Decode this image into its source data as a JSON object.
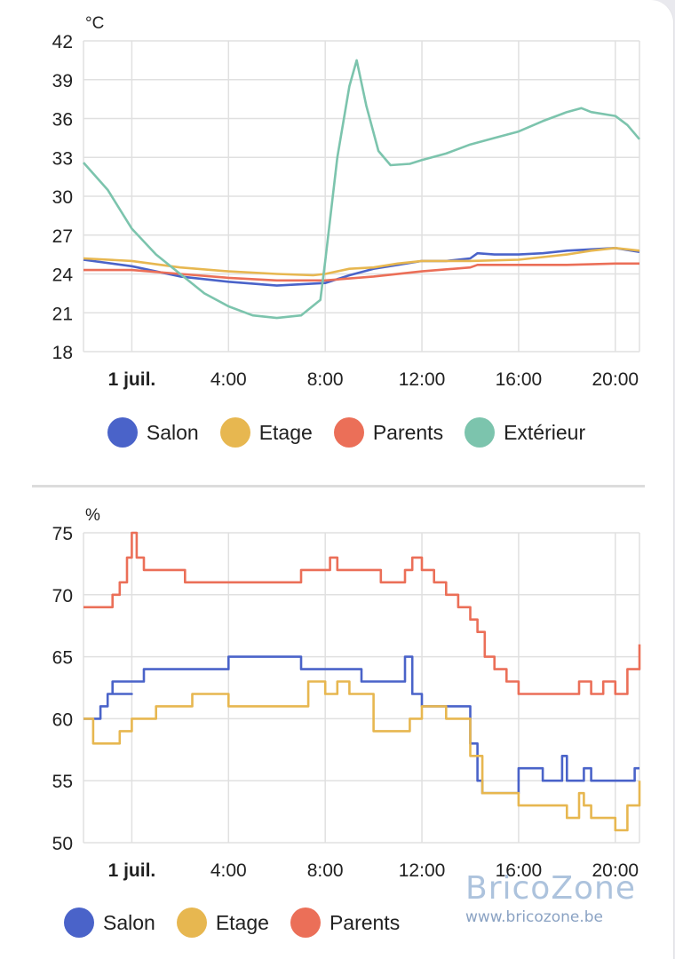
{
  "colors": {
    "salon": "#4a63c9",
    "etage": "#e7b750",
    "parents": "#eb6f58",
    "exterieur": "#7cc4ad",
    "grid": "#e0e0e0"
  },
  "chart_data": [
    {
      "type": "line",
      "title": "",
      "unit": "°C",
      "ylim": [
        18,
        42
      ],
      "yticks": [
        18,
        21,
        24,
        27,
        30,
        33,
        36,
        39,
        42
      ],
      "x_range_hours": [
        -2,
        21
      ],
      "x_ticks": [
        {
          "hour": 0,
          "label": "1 juil.",
          "bold": true
        },
        {
          "hour": 4,
          "label": "4:00",
          "bold": false
        },
        {
          "hour": 8,
          "label": "8:00",
          "bold": false
        },
        {
          "hour": 12,
          "label": "12:00",
          "bold": false
        },
        {
          "hour": 16,
          "label": "16:00",
          "bold": false
        },
        {
          "hour": 20,
          "label": "20:00",
          "bold": false
        }
      ],
      "grid": true,
      "legend_position": "bottom",
      "series": [
        {
          "name": "Salon",
          "color_key": "salon",
          "points": [
            [
              -2,
              25.1
            ],
            [
              0,
              24.6
            ],
            [
              2,
              23.8
            ],
            [
              4,
              23.4
            ],
            [
              6,
              23.1
            ],
            [
              8,
              23.3
            ],
            [
              9,
              23.9
            ],
            [
              10,
              24.4
            ],
            [
              11,
              24.7
            ],
            [
              12,
              25.0
            ],
            [
              13,
              25.0
            ],
            [
              14,
              25.2
            ],
            [
              14.3,
              25.6
            ],
            [
              15,
              25.5
            ],
            [
              16,
              25.5
            ],
            [
              17,
              25.6
            ],
            [
              18,
              25.8
            ],
            [
              19,
              25.9
            ],
            [
              20,
              26.0
            ],
            [
              21,
              25.7
            ]
          ]
        },
        {
          "name": "Etage",
          "color_key": "etage",
          "points": [
            [
              -2,
              25.2
            ],
            [
              0,
              25.0
            ],
            [
              2,
              24.5
            ],
            [
              4,
              24.2
            ],
            [
              6,
              24.0
            ],
            [
              7.5,
              23.9
            ],
            [
              8,
              24.0
            ],
            [
              9,
              24.4
            ],
            [
              10,
              24.5
            ],
            [
              11,
              24.8
            ],
            [
              12,
              25.0
            ],
            [
              14,
              25.0
            ],
            [
              16,
              25.1
            ],
            [
              18,
              25.5
            ],
            [
              19,
              25.8
            ],
            [
              20,
              26.0
            ],
            [
              21,
              25.8
            ]
          ]
        },
        {
          "name": "Parents",
          "color_key": "parents",
          "points": [
            [
              -2,
              24.3
            ],
            [
              0,
              24.3
            ],
            [
              2,
              24.0
            ],
            [
              4,
              23.7
            ],
            [
              6,
              23.5
            ],
            [
              8,
              23.5
            ],
            [
              10,
              23.8
            ],
            [
              12,
              24.2
            ],
            [
              14,
              24.5
            ],
            [
              14.3,
              24.7
            ],
            [
              16,
              24.7
            ],
            [
              18,
              24.7
            ],
            [
              20,
              24.8
            ],
            [
              21,
              24.8
            ]
          ]
        },
        {
          "name": "Extérieur",
          "color_key": "exterieur",
          "points": [
            [
              -2,
              32.6
            ],
            [
              -1,
              30.5
            ],
            [
              0,
              27.5
            ],
            [
              1,
              25.5
            ],
            [
              2,
              24.0
            ],
            [
              3,
              22.5
            ],
            [
              4,
              21.5
            ],
            [
              5,
              20.8
            ],
            [
              6,
              20.6
            ],
            [
              7,
              20.8
            ],
            [
              7.8,
              22.0
            ],
            [
              8,
              25.0
            ],
            [
              8.5,
              33.0
            ],
            [
              9,
              38.5
            ],
            [
              9.3,
              40.5
            ],
            [
              9.7,
              37.0
            ],
            [
              10.2,
              33.5
            ],
            [
              10.7,
              32.4
            ],
            [
              11.5,
              32.5
            ],
            [
              12,
              32.8
            ],
            [
              13,
              33.3
            ],
            [
              14,
              34.0
            ],
            [
              15,
              34.5
            ],
            [
              16,
              35.0
            ],
            [
              17,
              35.8
            ],
            [
              18,
              36.5
            ],
            [
              18.6,
              36.8
            ],
            [
              19,
              36.5
            ],
            [
              20,
              36.2
            ],
            [
              20.5,
              35.5
            ],
            [
              21,
              34.4
            ]
          ]
        }
      ]
    },
    {
      "type": "line",
      "title": "",
      "unit": "%",
      "ylim": [
        50,
        75
      ],
      "yticks": [
        50,
        55,
        60,
        65,
        70,
        75
      ],
      "x_range_hours": [
        -2,
        21
      ],
      "x_ticks": [
        {
          "hour": 0,
          "label": "1 juil.",
          "bold": true
        },
        {
          "hour": 4,
          "label": "4:00",
          "bold": false
        },
        {
          "hour": 8,
          "label": "8:00",
          "bold": false
        },
        {
          "hour": 12,
          "label": "12:00",
          "bold": false
        },
        {
          "hour": 16,
          "label": "16:00",
          "bold": false
        },
        {
          "hour": 20,
          "label": "20:00",
          "bold": false
        }
      ],
      "grid": true,
      "legend_position": "bottom",
      "series": [
        {
          "name": "Salon",
          "color_key": "salon",
          "points": [
            [
              -2,
              60
            ],
            [
              -1.3,
              61
            ],
            [
              -1,
              62
            ],
            [
              0,
              62
            ],
            [
              -0.8,
              63
            ],
            [
              0,
              63
            ],
            [
              0.5,
              64
            ],
            [
              4,
              64
            ],
            [
              4,
              65
            ],
            [
              6,
              65
            ],
            [
              6.5,
              65
            ],
            [
              7,
              64
            ],
            [
              9,
              64
            ],
            [
              9.5,
              63
            ],
            [
              11,
              63
            ],
            [
              11.3,
              65
            ],
            [
              11.6,
              62
            ],
            [
              12,
              61
            ],
            [
              13.5,
              61
            ],
            [
              14,
              58
            ],
            [
              14.3,
              55
            ],
            [
              14.5,
              54
            ],
            [
              15,
              54
            ],
            [
              16,
              55
            ],
            [
              16,
              56
            ],
            [
              17,
              55
            ],
            [
              17.5,
              55
            ],
            [
              17.8,
              57
            ],
            [
              18,
              55
            ],
            [
              18.5,
              55
            ],
            [
              18.7,
              56
            ],
            [
              19,
              55
            ],
            [
              20.5,
              55
            ],
            [
              20.8,
              56
            ],
            [
              21,
              56
            ]
          ]
        },
        {
          "name": "Etage",
          "color_key": "etage",
          "points": [
            [
              -2,
              60
            ],
            [
              -1.6,
              58
            ],
            [
              -1,
              58
            ],
            [
              -0.5,
              59
            ],
            [
              0,
              60
            ],
            [
              0.5,
              60
            ],
            [
              1,
              61
            ],
            [
              2,
              61
            ],
            [
              2.5,
              62
            ],
            [
              3.5,
              62
            ],
            [
              4,
              61
            ],
            [
              6,
              61
            ],
            [
              7,
              61
            ],
            [
              7.3,
              63
            ],
            [
              8,
              62
            ],
            [
              8.5,
              63
            ],
            [
              9,
              62
            ],
            [
              10,
              59
            ],
            [
              11,
              59
            ],
            [
              11.5,
              60
            ],
            [
              12,
              61
            ],
            [
              13,
              60
            ],
            [
              14,
              57
            ],
            [
              14.5,
              54
            ],
            [
              15,
              54
            ],
            [
              16,
              53
            ],
            [
              17,
              53
            ],
            [
              17.5,
              53
            ],
            [
              18,
              52
            ],
            [
              18.5,
              54
            ],
            [
              18.7,
              53
            ],
            [
              19,
              52
            ],
            [
              20,
              51
            ],
            [
              20.5,
              53
            ],
            [
              21,
              55
            ]
          ]
        },
        {
          "name": "Parents",
          "color_key": "parents",
          "points": [
            [
              -2,
              69
            ],
            [
              -1,
              69
            ],
            [
              -0.8,
              70
            ],
            [
              -0.5,
              71
            ],
            [
              -0.2,
              73
            ],
            [
              0,
              75
            ],
            [
              0.2,
              73
            ],
            [
              0.5,
              72
            ],
            [
              2,
              72
            ],
            [
              2.2,
              71
            ],
            [
              4,
              71
            ],
            [
              6,
              71
            ],
            [
              7,
              72
            ],
            [
              8,
              72
            ],
            [
              8.2,
              73
            ],
            [
              8.5,
              72
            ],
            [
              10,
              72
            ],
            [
              10.3,
              71
            ],
            [
              11,
              71
            ],
            [
              11.3,
              72
            ],
            [
              11.6,
              73
            ],
            [
              12,
              72
            ],
            [
              12.5,
              71
            ],
            [
              13,
              70
            ],
            [
              13.5,
              69
            ],
            [
              14,
              68
            ],
            [
              14.3,
              67
            ],
            [
              14.6,
              65
            ],
            [
              15,
              64
            ],
            [
              15.5,
              63
            ],
            [
              16,
              62
            ],
            [
              17,
              62
            ],
            [
              18,
              62
            ],
            [
              18.5,
              63
            ],
            [
              19,
              62
            ],
            [
              19.5,
              63
            ],
            [
              20,
              62
            ],
            [
              20.5,
              64
            ],
            [
              21,
              66
            ]
          ]
        }
      ]
    }
  ],
  "temp_legend": [
    {
      "label": "Salon",
      "color_key": "salon"
    },
    {
      "label": "Etage",
      "color_key": "etage"
    },
    {
      "label": "Parents",
      "color_key": "parents"
    },
    {
      "label": "Extérieur",
      "color_key": "exterieur"
    }
  ],
  "hum_legend": [
    {
      "label": "Salon",
      "color_key": "salon"
    },
    {
      "label": "Etage",
      "color_key": "etage"
    },
    {
      "label": "Parents",
      "color_key": "parents"
    }
  ],
  "watermark": {
    "title": "BricoZone",
    "url": "www.bricozone.be"
  }
}
